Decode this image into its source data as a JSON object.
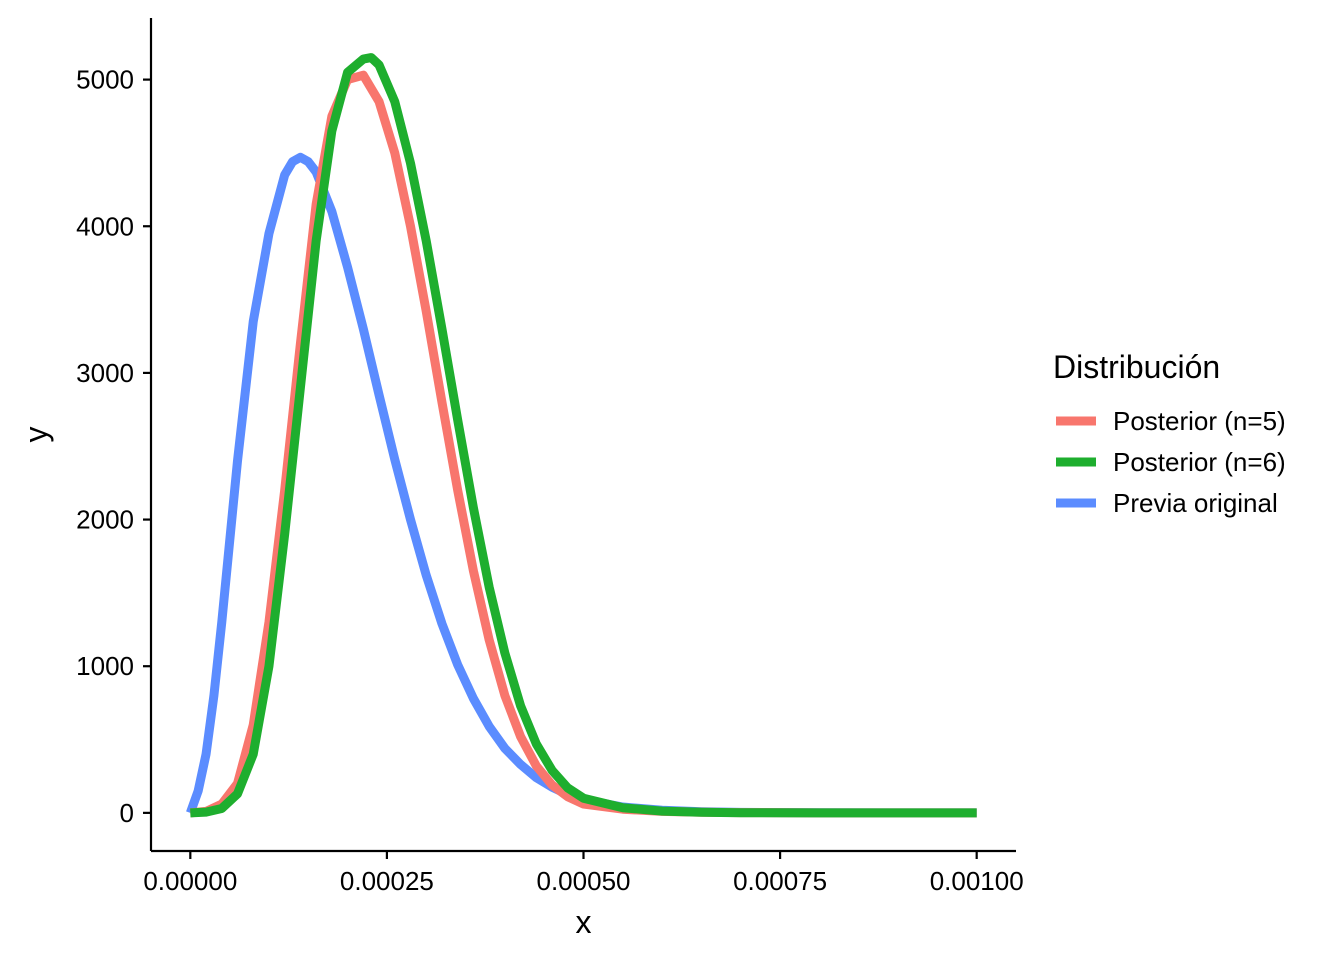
{
  "chart_data": {
    "type": "line",
    "title": "",
    "xlabel": "x",
    "ylabel": "y",
    "xlim": [
      -5e-05,
      0.00105
    ],
    "ylim": [
      -260,
      5420
    ],
    "x_ticks": [
      0,
      0.00025,
      0.0005,
      0.00075,
      0.001
    ],
    "x_tick_labels": [
      "0.00000",
      "0.00025",
      "0.00050",
      "0.00075",
      "0.00100"
    ],
    "y_ticks": [
      0,
      1000,
      2000,
      3000,
      4000,
      5000
    ],
    "y_tick_labels": [
      "0",
      "1000",
      "2000",
      "3000",
      "4000",
      "5000"
    ],
    "grid": false,
    "legend": {
      "title": "Distribución",
      "position": "right"
    },
    "series": [
      {
        "name": "Posterior (n=5)",
        "color": "#F8766D",
        "x": [
          0,
          2e-05,
          4e-05,
          6e-05,
          8e-05,
          0.0001,
          0.00012,
          0.00014,
          0.00016,
          0.00018,
          0.0002,
          0.00022,
          0.00024,
          0.00026,
          0.00028,
          0.0003,
          0.00032,
          0.00034,
          0.00036,
          0.00038,
          0.0004,
          0.00042,
          0.00044,
          0.00046,
          0.00048,
          0.0005,
          0.00055,
          0.0006,
          0.00065,
          0.0007,
          0.0008,
          0.0009,
          0.001
        ],
        "y": [
          0,
          10,
          60,
          200,
          600,
          1300,
          2200,
          3200,
          4150,
          4750,
          5000,
          5030,
          4850,
          4500,
          4000,
          3420,
          2800,
          2200,
          1650,
          1180,
          800,
          520,
          320,
          190,
          110,
          60,
          25,
          10,
          4,
          2,
          0,
          0,
          0
        ]
      },
      {
        "name": "Posterior (n=6)",
        "color": "#1EAE2E",
        "x": [
          0,
          2e-05,
          4e-05,
          6e-05,
          8e-05,
          0.0001,
          0.00012,
          0.00014,
          0.00016,
          0.00018,
          0.0002,
          0.00022,
          0.00023,
          0.00024,
          0.00026,
          0.00028,
          0.0003,
          0.00032,
          0.00034,
          0.00036,
          0.00038,
          0.0004,
          0.00042,
          0.00044,
          0.00046,
          0.00048,
          0.0005,
          0.00055,
          0.0006,
          0.00065,
          0.0007,
          0.0008,
          0.0009,
          0.001
        ],
        "y": [
          0,
          5,
          30,
          130,
          400,
          1000,
          1900,
          2900,
          3900,
          4650,
          5050,
          5140,
          5150,
          5100,
          4850,
          4430,
          3900,
          3300,
          2680,
          2080,
          1540,
          1090,
          730,
          470,
          290,
          170,
          100,
          35,
          12,
          4,
          1,
          0,
          0,
          0
        ]
      },
      {
        "name": "Previa original",
        "color": "#5B8CFF",
        "x": [
          0,
          1e-05,
          2e-05,
          3e-05,
          4e-05,
          6e-05,
          8e-05,
          0.0001,
          0.00012,
          0.00013,
          0.00014,
          0.00015,
          0.00016,
          0.00018,
          0.0002,
          0.00022,
          0.00024,
          0.00026,
          0.00028,
          0.0003,
          0.00032,
          0.00034,
          0.00036,
          0.00038,
          0.0004,
          0.00042,
          0.00044,
          0.00046,
          0.00048,
          0.0005,
          0.00055,
          0.0006,
          0.00065,
          0.0007,
          0.0008,
          0.0009,
          0.001
        ],
        "y": [
          0,
          150,
          400,
          800,
          1300,
          2400,
          3350,
          3950,
          4350,
          4440,
          4470,
          4440,
          4370,
          4100,
          3720,
          3300,
          2850,
          2410,
          2000,
          1620,
          1290,
          1010,
          780,
          590,
          440,
          330,
          240,
          175,
          125,
          90,
          40,
          18,
          8,
          3,
          1,
          0,
          0
        ]
      }
    ]
  }
}
